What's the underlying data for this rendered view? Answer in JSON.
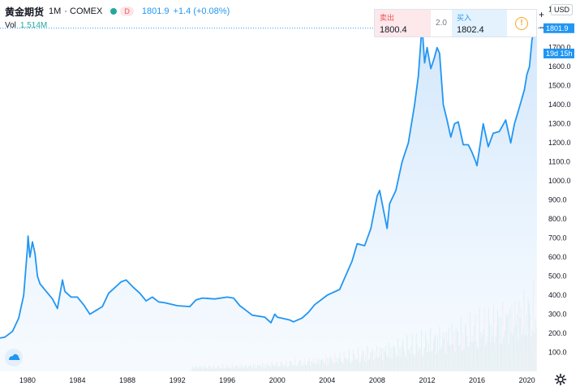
{
  "header": {
    "symbol": "黄金期货",
    "timeframe": "1M",
    "exchange": "· COMEX",
    "badge": "D",
    "price": "1801.9",
    "change": "+1.4 (+0.08%)"
  },
  "volume": {
    "label": "Vol",
    "value": "1.514M"
  },
  "trade": {
    "sell_label": "卖出",
    "sell_value": "1800.4",
    "spread": "2.0",
    "buy_label": "买入",
    "buy_value": "1802.4",
    "info_icon": "!"
  },
  "currency": "USD",
  "zoom": {
    "plus": "+",
    "minus": "−"
  },
  "price_tag": "1801.9",
  "countdown_tag": "19d 15h",
  "colors": {
    "line": "#2196f3",
    "area": "#cfe5fb",
    "up_vol": "#b2dfdb",
    "down_vol": "#ffcdd2"
  },
  "chart_data": {
    "type": "area",
    "x_ticks": [
      "1980",
      "1984",
      "1988",
      "1992",
      "1996",
      "2000",
      "2004",
      "2008",
      "2012",
      "2016",
      "2020"
    ],
    "y_ticks": [
      "1900.0",
      "1800.0",
      "1700.0",
      "1600.0",
      "1500.0",
      "1400.0",
      "1300.0",
      "1200.0",
      "1100.0",
      "1000.0",
      "900.0",
      "800.0",
      "700.0",
      "600.0",
      "500.0",
      "400.0",
      "300.0",
      "200.0",
      "100.0"
    ],
    "ylim": [
      0,
      1950
    ],
    "xlim": [
      1977.8,
      2021.0
    ],
    "x": [
      1977.8,
      1978.2,
      1978.8,
      1979.3,
      1979.7,
      1980.0,
      1980.05,
      1980.2,
      1980.4,
      1980.6,
      1980.8,
      1981.0,
      1981.5,
      1982.0,
      1982.4,
      1982.8,
      1983.0,
      1983.5,
      1984.0,
      1984.5,
      1985.0,
      1985.5,
      1986.0,
      1986.5,
      1987.0,
      1987.5,
      1987.9,
      1988.5,
      1989.0,
      1989.5,
      1990.0,
      1990.5,
      1991.0,
      1992.0,
      1993.0,
      1993.5,
      1994.0,
      1995.0,
      1996.0,
      1996.5,
      1997.0,
      1997.5,
      1998.0,
      1999.0,
      1999.5,
      1999.8,
      2000.0,
      2001.0,
      2001.3,
      2002.0,
      2002.5,
      2003.0,
      2004.0,
      2005.0,
      2006.0,
      2006.4,
      2007.0,
      2007.5,
      2008.0,
      2008.2,
      2008.8,
      2009.0,
      2009.5,
      2010.0,
      2010.5,
      2011.0,
      2011.3,
      2011.6,
      2011.8,
      2012.0,
      2012.3,
      2012.6,
      2012.8,
      2013.0,
      2013.3,
      2013.6,
      2013.9,
      2014.2,
      2014.5,
      2014.9,
      2015.3,
      2015.6,
      2015.9,
      2016.0,
      2016.5,
      2016.9,
      2017.3,
      2017.8,
      2018.3,
      2018.7,
      2019.0,
      2019.5,
      2019.8,
      2020.0,
      2020.2,
      2020.4,
      2020.6,
      2020.8
    ],
    "values": [
      175,
      180,
      210,
      280,
      400,
      650,
      710,
      600,
      680,
      620,
      500,
      460,
      420,
      380,
      330,
      480,
      420,
      390,
      390,
      350,
      300,
      320,
      340,
      410,
      440,
      470,
      480,
      440,
      410,
      370,
      390,
      365,
      360,
      345,
      340,
      375,
      385,
      380,
      390,
      385,
      345,
      320,
      295,
      285,
      255,
      300,
      285,
      270,
      260,
      280,
      310,
      350,
      400,
      430,
      580,
      670,
      660,
      750,
      920,
      950,
      750,
      880,
      950,
      1100,
      1200,
      1400,
      1550,
      1820,
      1620,
      1700,
      1590,
      1650,
      1700,
      1670,
      1400,
      1320,
      1230,
      1300,
      1310,
      1190,
      1190,
      1150,
      1100,
      1080,
      1300,
      1180,
      1250,
      1260,
      1320,
      1200,
      1300,
      1410,
      1480,
      1560,
      1600,
      1740,
      1800,
      1801.9
    ],
    "xlabel": "",
    "ylabel": "",
    "grid": false
  }
}
